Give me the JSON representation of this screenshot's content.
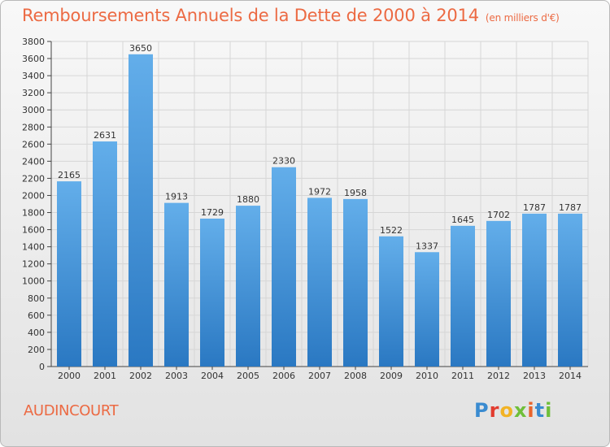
{
  "title": "Remboursements Annuels de la Dette de 2000 à 2014",
  "subtitle": "(en milliers d'€)",
  "commune": "AUDINCOURT",
  "logo": {
    "text": "Proxiti",
    "letters": [
      "P",
      "r",
      "o",
      "x",
      "i",
      "t",
      "i"
    ]
  },
  "colors": {
    "title": "#ec6a43",
    "bar_top": "#63aeea",
    "bar_bottom": "#2a78c2",
    "grid": "#d6d6d6"
  },
  "chart_data": {
    "type": "bar",
    "categories": [
      "2000",
      "2001",
      "2002",
      "2003",
      "2004",
      "2005",
      "2006",
      "2007",
      "2008",
      "2009",
      "2010",
      "2011",
      "2012",
      "2013",
      "2014"
    ],
    "values": [
      2165,
      2631,
      3650,
      1913,
      1729,
      1880,
      2330,
      1972,
      1958,
      1522,
      1337,
      1645,
      1702,
      1787,
      1787
    ],
    "ylim": [
      0,
      3800
    ],
    "yticks": [
      0,
      200,
      400,
      600,
      800,
      1000,
      1200,
      1400,
      1600,
      1800,
      2000,
      2200,
      2400,
      2600,
      2800,
      3000,
      3200,
      3400,
      3600,
      3800
    ],
    "grid": true
  }
}
